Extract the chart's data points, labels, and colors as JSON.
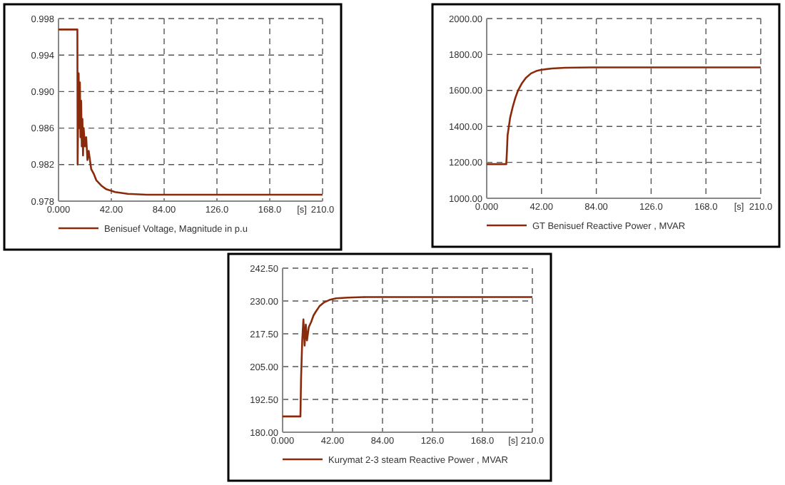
{
  "chart_data": [
    {
      "type": "line",
      "xlabel": "[s]",
      "xlim": [
        0,
        210
      ],
      "xticks": [
        {
          "value": 0,
          "label": "0.000"
        },
        {
          "value": 42,
          "label": "42.00"
        },
        {
          "value": 84,
          "label": "84.00"
        },
        {
          "value": 126,
          "label": "126.0"
        },
        {
          "value": 168,
          "label": "168.0"
        },
        {
          "value": 210,
          "label": "210.0"
        }
      ],
      "ylim": [
        0.978,
        0.998
      ],
      "yticks": [
        0.978,
        0.982,
        {
          "value": 0.986,
          "label": "0.986"
        },
        {
          "value": 0.99,
          "label": "0.990"
        },
        0.994,
        0.998
      ],
      "grid": true,
      "legend": "bottom",
      "line_style": "solid",
      "series": [
        {
          "name": "Benisuef Voltage, Magnitude in p.u",
          "color": "#8b2a0a",
          "x": [
            0,
            15,
            15.2,
            16,
            16.5,
            17,
            17.5,
            18,
            18.5,
            19,
            19.5,
            20,
            21,
            22,
            23,
            24,
            26,
            28,
            30,
            34,
            38,
            45,
            55,
            70,
            210
          ],
          "values": [
            0.9968,
            0.9968,
            0.982,
            0.992,
            0.986,
            0.991,
            0.985,
            0.989,
            0.984,
            0.987,
            0.983,
            0.986,
            0.984,
            0.985,
            0.9825,
            0.9835,
            0.9815,
            0.981,
            0.9803,
            0.9797,
            0.9793,
            0.979,
            0.9788,
            0.9787,
            0.9787
          ]
        }
      ]
    },
    {
      "type": "line",
      "xlabel": "[s]",
      "xlim": [
        0,
        210
      ],
      "xticks": [
        {
          "value": 0,
          "label": "0.000"
        },
        {
          "value": 42,
          "label": "42.00"
        },
        {
          "value": 84,
          "label": "84.00"
        },
        {
          "value": 126,
          "label": "126.0"
        },
        {
          "value": 168,
          "label": "168.0"
        },
        {
          "value": 210,
          "label": "210.0"
        }
      ],
      "ylim": [
        1000,
        2000
      ],
      "yticks": [
        {
          "value": 1000,
          "label": "1000.00"
        },
        {
          "value": 1200,
          "label": "1200.00"
        },
        {
          "value": 1400,
          "label": "1400.00"
        },
        {
          "value": 1600,
          "label": "1600.00"
        },
        {
          "value": 1800,
          "label": "1800.00"
        },
        {
          "value": 2000,
          "label": "2000.00"
        }
      ],
      "grid": true,
      "legend": "bottom",
      "line_style": "solid",
      "series": [
        {
          "name": "GT Benisuef  Reactive Power , MVAR",
          "color": "#8b2a0a",
          "x": [
            0,
            15,
            15.5,
            16,
            17,
            18,
            20,
            22,
            24,
            27,
            30,
            34,
            38,
            42,
            50,
            60,
            80,
            210
          ],
          "values": [
            1190,
            1190,
            1260,
            1350,
            1400,
            1450,
            1510,
            1560,
            1600,
            1640,
            1670,
            1695,
            1708,
            1715,
            1722,
            1726,
            1728,
            1728
          ]
        }
      ]
    },
    {
      "type": "line",
      "xlabel": "[s]",
      "xlim": [
        0,
        210
      ],
      "xticks": [
        {
          "value": 0,
          "label": "0.000"
        },
        {
          "value": 42,
          "label": "42.00"
        },
        {
          "value": 84,
          "label": "84.00"
        },
        {
          "value": 126,
          "label": "126.0"
        },
        {
          "value": 168,
          "label": "168.0"
        },
        {
          "value": 210,
          "label": "210.0"
        }
      ],
      "ylim": [
        180,
        242.5
      ],
      "yticks": [
        {
          "value": 180,
          "label": "180.00"
        },
        {
          "value": 192.5,
          "label": "192.50"
        },
        {
          "value": 205,
          "label": "205.00"
        },
        {
          "value": 217.5,
          "label": "217.50"
        },
        {
          "value": 230,
          "label": "230.00"
        },
        {
          "value": 242.5,
          "label": "242.50"
        }
      ],
      "grid": true,
      "legend": "bottom",
      "line_style": "solid",
      "series": [
        {
          "name": "Kurymat 2-3 steam  Reactive Power , MVAR",
          "color": "#8b2a0a",
          "x": [
            0,
            15,
            15.5,
            16.5,
            17.5,
            18.5,
            19.5,
            20.5,
            22,
            24,
            26,
            28,
            31,
            35,
            40,
            45,
            55,
            70,
            210
          ],
          "values": [
            186,
            186,
            200,
            215,
            223,
            213,
            221,
            215,
            220,
            222,
            224.5,
            226,
            228,
            229.5,
            230.5,
            231,
            231.3,
            231.5,
            231.5
          ]
        }
      ]
    }
  ]
}
